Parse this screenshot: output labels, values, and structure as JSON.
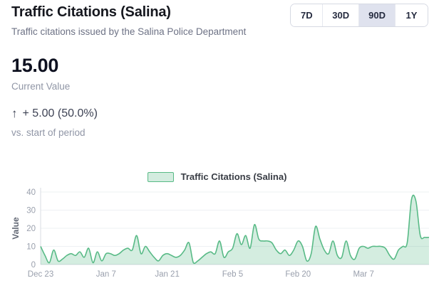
{
  "header": {
    "title": "Traffic Citations (Salina)",
    "subtitle": "Traffic citations issued by the Salina Police Department",
    "ranges": [
      {
        "label": "7D",
        "selected": false
      },
      {
        "label": "30D",
        "selected": false
      },
      {
        "label": "90D",
        "selected": true
      },
      {
        "label": "1Y",
        "selected": false
      }
    ]
  },
  "stats": {
    "current_value": "15.00",
    "current_value_label": "Current Value",
    "change_arrow": "↑",
    "change_text": "+ 5.00 (50.0%)",
    "change_caption": "vs. start of period"
  },
  "colors": {
    "accent_green": "#58ba86",
    "range_selected_bg": "#dfe2ee",
    "grid": "#eef0f3",
    "axis": "#dadde3",
    "tick_text": "#9aa0ad"
  },
  "chart_data": {
    "type": "area",
    "legend_label": "Traffic Citations (Salina)",
    "ylabel": "Value",
    "ylim": [
      0,
      40
    ],
    "yticks": [
      0,
      10,
      20,
      30,
      40
    ],
    "x_tick_labels": [
      "Dec 23",
      "Jan 7",
      "Jan 21",
      "Feb 5",
      "Feb 20",
      "Mar 7"
    ],
    "x_tick_positions": [
      0,
      15,
      29,
      44,
      59,
      74
    ],
    "grid": true,
    "legend_position": "top-center",
    "line_color": "#58ba86",
    "fill_color": "rgba(88,186,134,0.26)",
    "values": [
      10,
      5,
      1,
      8,
      2,
      3,
      5,
      6,
      5,
      7,
      4,
      9,
      1,
      7,
      2,
      6,
      6,
      5,
      6,
      8,
      9,
      8,
      16,
      6,
      10,
      7,
      4,
      2,
      5,
      6,
      5,
      4,
      5,
      8,
      12,
      1,
      2,
      4,
      6,
      7,
      6,
      13,
      4,
      7,
      9,
      17,
      11,
      16,
      9,
      22,
      14,
      13,
      13,
      12,
      8,
      6,
      8,
      5,
      8,
      13,
      10,
      2,
      6,
      21,
      14,
      8,
      6,
      13,
      5,
      4,
      13,
      5,
      3,
      9,
      10,
      9,
      10,
      10,
      10,
      9,
      5,
      3,
      8,
      10,
      12,
      36,
      35,
      16,
      15,
      15
    ]
  }
}
